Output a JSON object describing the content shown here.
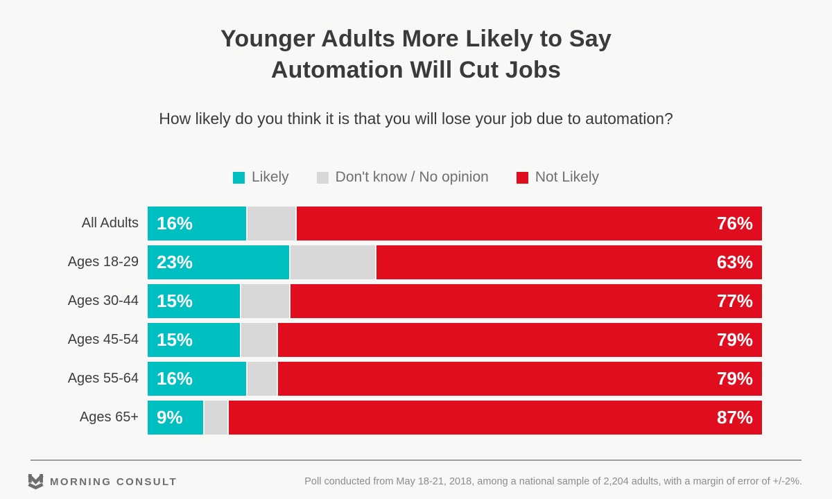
{
  "header": {
    "title": "Younger Adults More Likely to Say\nAutomation Will Cut Jobs",
    "subtitle": "How likely do you think it is that you will lose your job due to automation?"
  },
  "legend": {
    "items": [
      {
        "label": "Likely",
        "color": "#00bfc0"
      },
      {
        "label": "Don't know / No opinion",
        "color": "#d8d8d8"
      },
      {
        "label": "Not Likely",
        "color": "#e00d1e"
      }
    ]
  },
  "chart_data": {
    "type": "bar",
    "orientation": "horizontal",
    "stacked": true,
    "categories": [
      "All Adults",
      "Ages 18-29",
      "Ages 30-44",
      "Ages 45-54",
      "Ages 55-64",
      "Ages 65+"
    ],
    "series": [
      {
        "name": "Likely",
        "color": "#00bfc0",
        "values": [
          16,
          23,
          15,
          15,
          16,
          9
        ]
      },
      {
        "name": "Don't know / No opinion",
        "color": "#d8d8d8",
        "values": [
          8,
          14,
          8,
          6,
          5,
          4
        ]
      },
      {
        "name": "Not Likely",
        "color": "#e00d1e",
        "values": [
          76,
          63,
          77,
          79,
          79,
          87
        ]
      }
    ],
    "value_suffix": "%",
    "xlim": [
      0,
      100
    ],
    "grid": false,
    "legend_position": "top",
    "labeled_series": [
      "Likely",
      "Not Likely"
    ]
  },
  "footer": {
    "brand": "MORNING CONSULT",
    "note": "Poll conducted from May 18-21, 2018, among a national sample of 2,204 adults, with a margin of error of +/-2%."
  },
  "colors": {
    "background": "#f8f8f7",
    "likely": "#00bfc0",
    "dont_know": "#d8d8d8",
    "not_likely": "#e00d1e",
    "text_dark": "#3a3a3a",
    "text_muted": "#6f6f6f"
  }
}
